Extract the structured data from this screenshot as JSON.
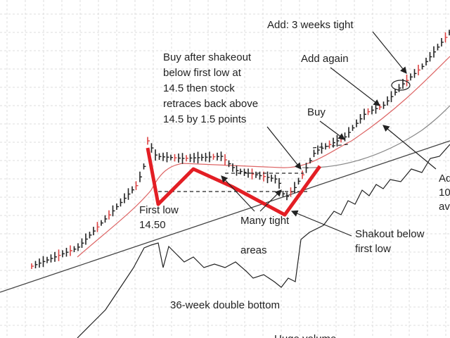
{
  "annotations": {
    "add_tight": "Add: 3 weeks tight",
    "add_again": "Add again",
    "buy_after": [
      "Buy after shakeout",
      "below first low at",
      "14.5 then stock",
      "retraces back above",
      "14.5 by 1.5 points"
    ],
    "buy": "Buy",
    "first_low": [
      "First low",
      "14.50"
    ],
    "many_tight": [
      "Many tight",
      "areas"
    ],
    "shakeout": [
      "Shakout below",
      "first low"
    ],
    "double_bottom": "36-week double bottom",
    "volume": "Huge volume",
    "right_cut": [
      "Ad",
      "10",
      "av"
    ]
  }
}
